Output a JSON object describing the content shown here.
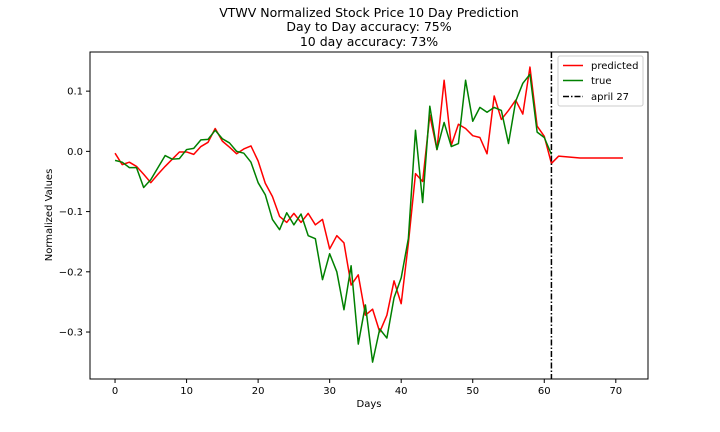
{
  "chart_data": {
    "type": "line",
    "title_lines": [
      "VTWV Normalized Stock Price 10 Day Prediction",
      "Day to Day accuracy: 75%",
      "10 day accuracy: 73%"
    ],
    "xlabel": "Days",
    "ylabel": "Normalized Values",
    "xlim": [
      -3.5,
      74.5
    ],
    "ylim": [
      -0.378,
      0.165
    ],
    "xticks": [
      0,
      10,
      20,
      30,
      40,
      50,
      60,
      70
    ],
    "yticks": [
      -0.3,
      -0.2,
      -0.1,
      0.0,
      0.1
    ],
    "ytick_labels": [
      "−0.3",
      "−0.2",
      "−0.1",
      "0.0",
      "0.1"
    ],
    "grid": false,
    "legend_position": "top-right",
    "series": [
      {
        "name": "predicted",
        "color": "#ff0000",
        "style": "solid",
        "x": [
          0,
          1,
          2,
          3,
          4,
          5,
          6,
          7,
          8,
          9,
          10,
          11,
          12,
          13,
          14,
          15,
          16,
          17,
          18,
          19,
          20,
          21,
          22,
          23,
          24,
          25,
          26,
          27,
          28,
          29,
          30,
          31,
          32,
          33,
          34,
          35,
          36,
          37,
          38,
          39,
          40,
          41,
          42,
          43,
          44,
          45,
          46,
          47,
          48,
          49,
          50,
          51,
          52,
          53,
          54,
          55,
          56,
          57,
          58,
          59,
          60,
          61,
          62,
          63,
          64,
          65,
          66,
          67,
          68,
          69,
          70,
          71
        ],
        "values": [
          -0.003,
          -0.022,
          -0.018,
          -0.025,
          -0.038,
          -0.052,
          -0.038,
          -0.025,
          -0.013,
          -0.001,
          -0.001,
          -0.005,
          0.008,
          0.015,
          0.038,
          0.017,
          0.007,
          -0.004,
          0.004,
          0.009,
          -0.016,
          -0.053,
          -0.075,
          -0.108,
          -0.118,
          -0.103,
          -0.118,
          -0.103,
          -0.122,
          -0.113,
          -0.162,
          -0.14,
          -0.152,
          -0.222,
          -0.205,
          -0.272,
          -0.262,
          -0.3,
          -0.272,
          -0.215,
          -0.253,
          -0.153,
          -0.037,
          -0.05,
          0.06,
          0.003,
          0.118,
          0.01,
          0.045,
          0.038,
          0.026,
          0.023,
          -0.004,
          0.092,
          0.053,
          0.068,
          0.085,
          0.062,
          0.14,
          0.042,
          0.025,
          -0.02,
          -0.008,
          -0.009,
          -0.01,
          -0.011,
          -0.011,
          -0.011,
          -0.011,
          -0.011,
          -0.011,
          -0.011
        ]
      },
      {
        "name": "true",
        "color": "#008000",
        "style": "solid",
        "x": [
          0,
          1,
          2,
          3,
          4,
          5,
          6,
          7,
          8,
          9,
          10,
          11,
          12,
          13,
          14,
          15,
          16,
          17,
          18,
          19,
          20,
          21,
          22,
          23,
          24,
          25,
          26,
          27,
          28,
          29,
          30,
          31,
          32,
          33,
          34,
          35,
          36,
          37,
          38,
          39,
          40,
          41,
          42,
          43,
          44,
          45,
          46,
          47,
          48,
          49,
          50,
          51,
          52,
          53,
          54,
          55,
          56,
          57,
          58,
          59,
          60,
          61
        ],
        "values": [
          -0.015,
          -0.018,
          -0.027,
          -0.027,
          -0.06,
          -0.047,
          -0.027,
          -0.007,
          -0.013,
          -0.012,
          0.003,
          0.005,
          0.019,
          0.02,
          0.035,
          0.021,
          0.014,
          0.0,
          -0.003,
          -0.018,
          -0.052,
          -0.072,
          -0.113,
          -0.13,
          -0.102,
          -0.122,
          -0.104,
          -0.14,
          -0.145,
          -0.213,
          -0.17,
          -0.2,
          -0.263,
          -0.19,
          -0.32,
          -0.255,
          -0.35,
          -0.295,
          -0.31,
          -0.243,
          -0.21,
          -0.145,
          0.035,
          -0.085,
          0.075,
          0.003,
          0.048,
          0.008,
          0.013,
          0.118,
          0.05,
          0.073,
          0.065,
          0.073,
          0.068,
          0.013,
          0.083,
          0.113,
          0.128,
          0.032,
          0.023,
          -0.005
        ]
      }
    ],
    "vertical_lines": [
      {
        "name": "april 27",
        "x": 61,
        "color": "#000000",
        "style": "dashdot"
      }
    ]
  }
}
